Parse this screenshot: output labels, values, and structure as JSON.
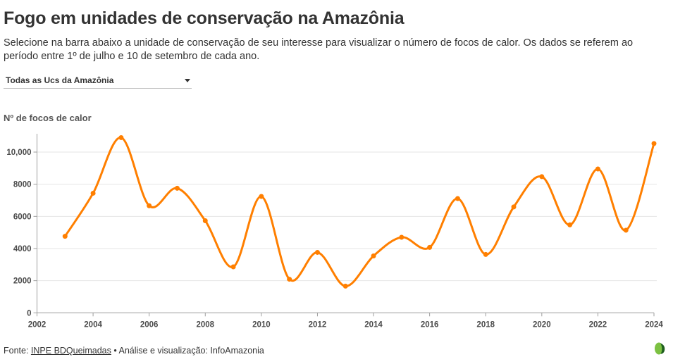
{
  "header": {
    "title": "Fogo em unidades de conservação na Amazônia",
    "subtitle": "Selecione na barra abaixo a unidade de conservação de seu interesse para visualizar o número de focos de calor. Os dados se referem ao período entre 1º de julho e 10 de setembro de cada ano."
  },
  "selector": {
    "selected": "Todas as Ucs da Amazônia",
    "icon": "caret-down-icon"
  },
  "footer": {
    "prefix": "Fonte: ",
    "source_link": "INPE BDQueimadas",
    "separator": " • ",
    "credit": "Análise e visualização: InfoAmazonia",
    "logo_icon": "infoamazonia-leaf-logo-icon"
  },
  "colors": {
    "line": "#ff7f00",
    "grid": "#e6e6e6",
    "axis": "#9e9e9e",
    "text": "#333333",
    "logo_light": "#7cc142",
    "logo_dark": "#1f5e1f"
  },
  "chart_data": {
    "type": "line",
    "title": "",
    "xlabel": "",
    "ylabel": "Nº de focos de calor",
    "xlim": [
      2002,
      2024
    ],
    "ylim": [
      0,
      11000
    ],
    "x_ticks": [
      2002,
      2004,
      2006,
      2008,
      2010,
      2012,
      2014,
      2016,
      2018,
      2020,
      2022,
      2024
    ],
    "x_tick_labels": [
      "2002",
      "2004",
      "2006",
      "2008",
      "2010",
      "2012",
      "2014",
      "2016",
      "2018",
      "2020",
      "2022",
      "2024"
    ],
    "y_ticks": [
      0,
      2000,
      4000,
      6000,
      8000,
      10000
    ],
    "y_tick_labels": [
      "0",
      "2000",
      "4000",
      "6000",
      "8000",
      "10,000"
    ],
    "grid": "horizontal",
    "curve": "smooth",
    "markers": true,
    "legend": "none",
    "series": [
      {
        "name": "Focos de calor",
        "x": [
          2003,
          2004,
          2005,
          2006,
          2007,
          2008,
          2009,
          2010,
          2011,
          2012,
          2013,
          2014,
          2015,
          2016,
          2017,
          2018,
          2019,
          2020,
          2021,
          2022,
          2023,
          2024
        ],
        "values": [
          4760,
          7440,
          10900,
          6660,
          7750,
          5730,
          2860,
          7240,
          2090,
          3760,
          1660,
          3540,
          4700,
          4070,
          7110,
          3630,
          6590,
          8470,
          5470,
          8950,
          5140,
          10530
        ]
      }
    ]
  }
}
